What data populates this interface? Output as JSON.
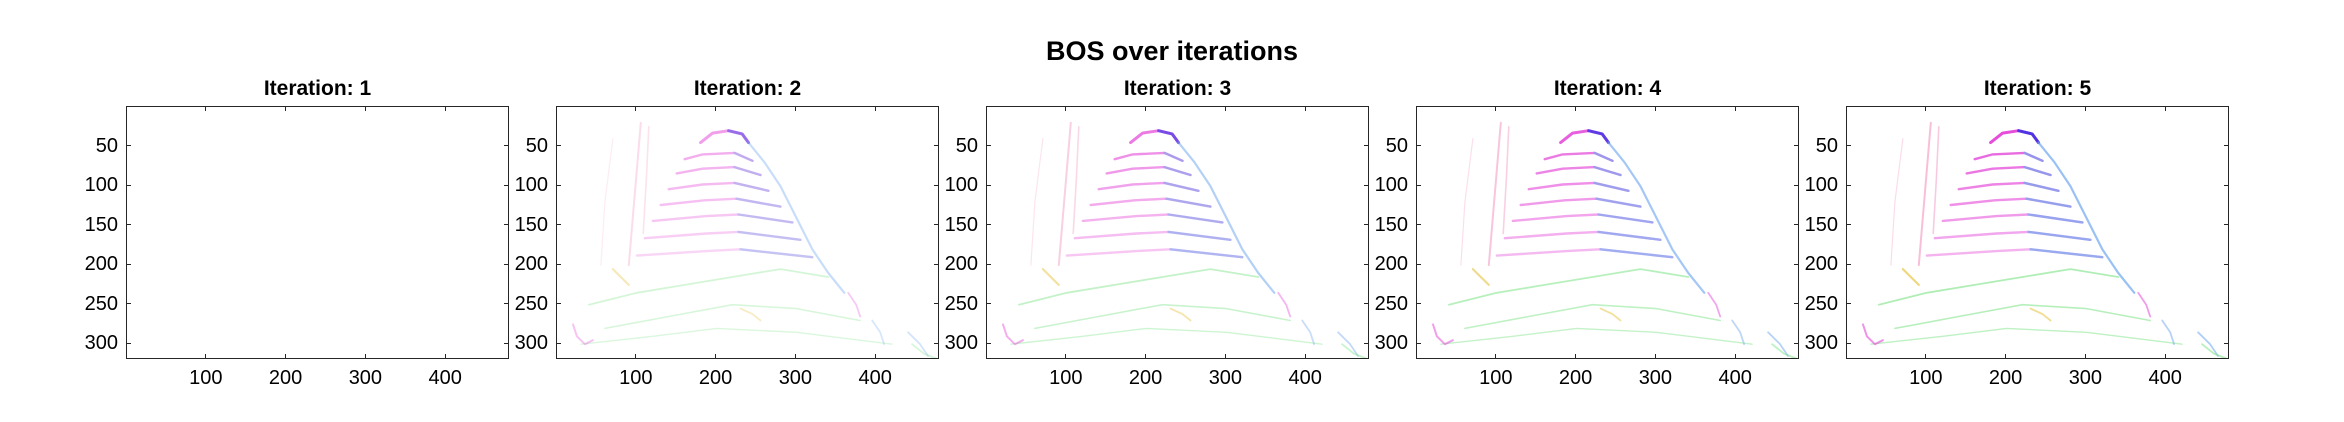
{
  "suptitle": "BOS over iterations",
  "chart_data": [
    {
      "type": "heatmap",
      "title": "Iteration: 1",
      "iteration": 1,
      "intensity": 0.0,
      "xlim": [
        0,
        480
      ],
      "ylim": [
        0,
        320
      ],
      "xticks": [
        100,
        200,
        300,
        400
      ],
      "yticks": [
        50,
        100,
        150,
        200,
        250,
        300
      ],
      "y_reversed": true,
      "grid": false
    },
    {
      "type": "heatmap",
      "title": "Iteration: 2",
      "iteration": 2,
      "intensity": 0.55,
      "xlim": [
        0,
        480
      ],
      "ylim": [
        0,
        320
      ],
      "xticks": [
        100,
        200,
        300,
        400
      ],
      "yticks": [
        50,
        100,
        150,
        200,
        250,
        300
      ],
      "y_reversed": true,
      "grid": false
    },
    {
      "type": "heatmap",
      "title": "Iteration: 3",
      "iteration": 3,
      "intensity": 0.75,
      "xlim": [
        0,
        480
      ],
      "ylim": [
        0,
        320
      ],
      "xticks": [
        100,
        200,
        300,
        400
      ],
      "yticks": [
        50,
        100,
        150,
        200,
        250,
        300
      ],
      "y_reversed": true,
      "grid": false
    },
    {
      "type": "heatmap",
      "title": "Iteration: 4",
      "iteration": 4,
      "intensity": 0.9,
      "xlim": [
        0,
        480
      ],
      "ylim": [
        0,
        320
      ],
      "xticks": [
        100,
        200,
        300,
        400
      ],
      "yticks": [
        50,
        100,
        150,
        200,
        250,
        300
      ],
      "y_reversed": true,
      "grid": false
    },
    {
      "type": "heatmap",
      "title": "Iteration: 5",
      "iteration": 5,
      "intensity": 1.0,
      "xlim": [
        0,
        480
      ],
      "ylim": [
        0,
        320
      ],
      "xticks": [
        100,
        200,
        300,
        400
      ],
      "yticks": [
        50,
        100,
        150,
        200,
        250,
        300
      ],
      "y_reversed": true,
      "grid": false
    }
  ],
  "colors": {
    "magenta": "#e23ad6",
    "blue": "#2a2ee6",
    "lightblue": "#6fa6f0",
    "green": "#6fe07a",
    "yellow": "#e8c64a",
    "pink": "#f08ab8",
    "axis": "#262626"
  }
}
